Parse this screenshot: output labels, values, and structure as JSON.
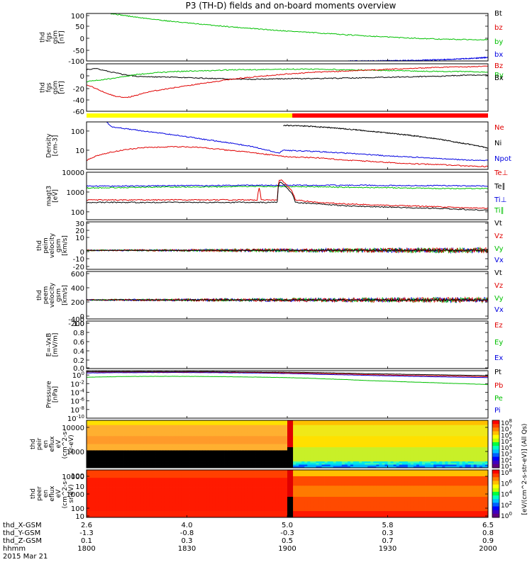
{
  "title": "P3 (TH-D) fields and on-board moments overview",
  "date_label": "2015 Mar 21",
  "time_axis": {
    "hhmm_ticks": [
      "1800",
      "1830",
      "1900",
      "1930",
      "2000"
    ],
    "rows": [
      {
        "label": "thd_X-GSM",
        "values": [
          "2.6",
          "4.0",
          "5.0",
          "5.8",
          "6.5"
        ]
      },
      {
        "label": "thd_Y-GSM",
        "values": [
          "-1.3",
          "-0.8",
          "-0.3",
          "0.3",
          "0.8"
        ]
      },
      {
        "label": "thd_Z-GSM",
        "values": [
          "0.1",
          "0.3",
          "0.5",
          "0.7",
          "0.9"
        ]
      },
      {
        "label": "hhmm",
        "values": [
          "1800",
          "1830",
          "1900",
          "1930",
          "2000"
        ]
      }
    ]
  },
  "colorbar_label": "[eV/(cm^2-s-str-eV)] (All Qs)",
  "mode_bar": {
    "colors": [
      "#ffff00",
      "#ff0000"
    ],
    "split_time": 1902.5
  },
  "chart_data": [
    {
      "type": "line",
      "ylabel": [
        "thd",
        "fgs",
        "gsm",
        "[nT]"
      ],
      "yticks": [
        "100",
        "50",
        "0",
        "-50",
        "-100"
      ],
      "ylim": [
        -100,
        100
      ],
      "legend": [
        {
          "name": "Bt",
          "color": "#000000"
        },
        {
          "name": "bz",
          "color": "#e00000"
        },
        {
          "name": "by",
          "color": "#00c000"
        },
        {
          "name": "bx",
          "color": "#0000e0"
        }
      ],
      "series": [
        {
          "name": "by",
          "color": "#00c000",
          "x": [
            1812,
            1825,
            1840,
            1855,
            1870,
            1885,
            1900,
            1915,
            1930,
            1945,
            1960,
            1975,
            1990,
            2000
          ],
          "y": [
            100,
            84,
            69,
            56,
            45,
            35,
            26,
            18,
            10,
            3,
            -3,
            -8,
            -10,
            -10
          ]
        },
        {
          "name": "bx",
          "color": "#0000e0",
          "x": [
            1930,
            1945,
            1960,
            1975,
            1990,
            2000
          ],
          "y": [
            -100,
            -100,
            -98,
            -95,
            -90,
            -85
          ]
        }
      ]
    },
    {
      "type": "line",
      "ylabel": [
        "thd",
        "fgs",
        "gsm",
        "[nT]"
      ],
      "yticks": [
        "0",
        "-20",
        "-40",
        "-60"
      ],
      "ylim": [
        -70,
        10
      ],
      "legend": [
        {
          "name": "Bz",
          "color": "#e00000"
        },
        {
          "name": "By",
          "color": "#00c000"
        },
        {
          "name": "Bx",
          "color": "#000000"
        }
      ],
      "series": [
        {
          "name": "Bx",
          "color": "#000000",
          "x": [
            1800,
            1805,
            1810,
            1818,
            1825,
            1835,
            1845,
            1855,
            1865,
            1875,
            1885,
            1900,
            1915,
            1930,
            1945,
            1960,
            1975,
            1990,
            2000
          ],
          "y": [
            0,
            2,
            -2,
            -8,
            -11,
            -12,
            -13,
            -14,
            -15,
            -16,
            -16,
            -15,
            -15,
            -14,
            -13,
            -12,
            -11,
            -9,
            -9
          ]
        },
        {
          "name": "By",
          "color": "#00c000",
          "x": [
            1800,
            1805,
            1810,
            1818,
            1825,
            1835,
            1845,
            1855,
            1865,
            1875,
            1885,
            1900,
            1915,
            1930,
            1945,
            1960,
            1975,
            1990,
            2000
          ],
          "y": [
            -20,
            -18,
            -16,
            -12,
            -8,
            -5,
            -3,
            -2,
            -1,
            0,
            0,
            1,
            1,
            0,
            -1,
            -2,
            -3,
            -3,
            -4
          ]
        },
        {
          "name": "Bz",
          "color": "#e00000",
          "x": [
            1800,
            1805,
            1810,
            1815,
            1820,
            1825,
            1830,
            1840,
            1850,
            1860,
            1870,
            1880,
            1890,
            1900,
            1915,
            1930,
            1945,
            1960,
            1975,
            1990,
            2000
          ],
          "y": [
            -25,
            -32,
            -40,
            -45,
            -47,
            -43,
            -38,
            -32,
            -27,
            -22,
            -17,
            -13,
            -10,
            -7,
            -4,
            -2,
            0,
            2,
            4,
            5,
            6
          ]
        }
      ]
    },
    {
      "type": "line",
      "yscale": "log",
      "ylabel": [
        "Density",
        "[cm-3]"
      ],
      "yticks": [
        "100",
        "10"
      ],
      "ylim": [
        1,
        300
      ],
      "legend": [
        {
          "name": "Ne",
          "color": "#e00000"
        },
        {
          "name": "Ni",
          "color": "#000000"
        },
        {
          "name": "Npot",
          "color": "#0000e0"
        }
      ],
      "series": [
        {
          "name": "Npot",
          "color": "#0000e0",
          "x": [
            1810,
            1812,
            1820,
            1830,
            1840,
            1850,
            1860,
            1870,
            1880,
            1890,
            1896,
            1898,
            1910,
            1930,
            1950,
            1970,
            1990,
            2000
          ],
          "y": [
            300,
            170,
            130,
            95,
            70,
            50,
            35,
            25,
            17,
            10,
            7,
            10,
            9,
            7,
            5,
            4,
            3,
            3
          ]
        },
        {
          "name": "Ne",
          "color": "#e00000",
          "x": [
            1800,
            1810,
            1820,
            1830,
            1840,
            1850,
            1860,
            1870,
            1880,
            1890,
            1900,
            1915,
            1930,
            1945,
            1960,
            1975,
            1990,
            2000
          ],
          "y": [
            3,
            7,
            11,
            14,
            15,
            15,
            13,
            10,
            8,
            6,
            4.5,
            4,
            3,
            2.5,
            2,
            1.8,
            1.5,
            1.4
          ]
        },
        {
          "name": "Ni",
          "color": "#000000",
          "x": [
            1898,
            1910,
            1925,
            1940,
            1955,
            1970,
            1985,
            2000
          ],
          "y": [
            200,
            180,
            140,
            100,
            70,
            45,
            25,
            13
          ]
        }
      ]
    },
    {
      "type": "line",
      "yscale": "log",
      "ylabel": [
        "magt3",
        "[eV]"
      ],
      "yticks": [
        "10000",
        "1000",
        "100"
      ],
      "ylim": [
        40,
        10000
      ],
      "legend": [
        {
          "name": "Te⊥",
          "color": "#e00000"
        },
        {
          "name": "Te∥",
          "color": "#000000"
        },
        {
          "name": "Ti⊥",
          "color": "#0000e0"
        },
        {
          "name": "Ti∥",
          "color": "#00c000"
        }
      ],
      "series": [
        {
          "name": "Ti⊥",
          "color": "#0000e0",
          "x": [
            1800,
            1820,
            1840,
            1860,
            1880,
            1900,
            1920,
            1940,
            1960,
            1980,
            2000
          ],
          "y": [
            2000,
            2000,
            2100,
            2100,
            2200,
            2200,
            2200,
            2200,
            2100,
            2100,
            2000
          ]
        },
        {
          "name": "Ti∥",
          "color": "#00c000",
          "x": [
            1800,
            1820,
            1840,
            1860,
            1880,
            1900,
            1920,
            1940,
            1960,
            1980,
            2000
          ],
          "y": [
            1600,
            1700,
            1800,
            1800,
            1900,
            1900,
            1800,
            1700,
            1600,
            1500,
            1500
          ]
        },
        {
          "name": "Te⊥",
          "color": "#e00000",
          "x": [
            1800,
            1830,
            1860,
            1885,
            1886,
            1887,
            1895,
            1896,
            1897,
            1900,
            1904,
            1915,
            1930,
            1945,
            1960,
            1975,
            1990,
            2000
          ],
          "y": [
            400,
            400,
            400,
            400,
            1500,
            400,
            400,
            4000,
            4000,
            2000,
            400,
            300,
            250,
            220,
            200,
            180,
            160,
            150
          ]
        },
        {
          "name": "Te∥",
          "color": "#000000",
          "x": [
            1800,
            1830,
            1860,
            1885,
            1895,
            1896,
            1897,
            1900,
            1904,
            1915,
            1930,
            1945,
            1960,
            1975,
            1990,
            2000
          ],
          "y": [
            300,
            300,
            300,
            300,
            300,
            3000,
            3000,
            1500,
            300,
            250,
            200,
            180,
            160,
            150,
            130,
            120
          ]
        }
      ]
    },
    {
      "type": "line",
      "ylabel": [
        "thd",
        "peim",
        "velocity",
        "gsm",
        "[km/s]"
      ],
      "yticks": [
        "30",
        "20",
        "10",
        "0",
        "-10",
        "-20"
      ],
      "ylim": [
        -20,
        30
      ],
      "legend": [
        {
          "name": "Vt",
          "color": "#000000"
        },
        {
          "name": "Vz",
          "color": "#e00000"
        },
        {
          "name": "Vy",
          "color": "#00c000"
        },
        {
          "name": "Vx",
          "color": "#0000e0"
        }
      ],
      "noise": {
        "baseline": 0,
        "amplitude_start": 0.6,
        "amplitude_end": 3
      },
      "series": []
    },
    {
      "type": "line",
      "ylabel": [
        "thd",
        "peem",
        "velocity",
        "gsm",
        "[km/s]"
      ],
      "yticks": [
        "600",
        "400",
        "200",
        "0",
        "-200",
        "-400"
      ],
      "ylim": [
        -400,
        600
      ],
      "legend": [
        {
          "name": "Vt",
          "color": "#000000"
        },
        {
          "name": "Vz",
          "color": "#e00000"
        },
        {
          "name": "Vy",
          "color": "#00c000"
        },
        {
          "name": "Vx",
          "color": "#0000e0"
        }
      ],
      "noise": {
        "baseline": 0,
        "amplitude_start": 15,
        "amplitude_end": 60
      },
      "series": []
    },
    {
      "type": "line",
      "ylabel": [
        "E=-VxB",
        "[mV/m]"
      ],
      "yticks": [
        "1.0",
        "0.8",
        "0.6",
        "0.4",
        "0.2",
        "0.0"
      ],
      "ylim": [
        0,
        1
      ],
      "legend": [
        {
          "name": "Ez",
          "color": "#e00000"
        },
        {
          "name": "Ey",
          "color": "#00c000"
        },
        {
          "name": "Ex",
          "color": "#0000e0"
        }
      ],
      "series": []
    },
    {
      "type": "line",
      "yscale": "log",
      "ylabel": [
        "Pressure",
        "[nPa]"
      ],
      "yticks": [
        "10^0",
        "10^-2",
        "10^-4",
        "10^-6",
        "10^-8",
        "10^-10"
      ],
      "ylim": [
        1e-10,
        10
      ],
      "legend": [
        {
          "name": "Pt",
          "color": "#000000"
        },
        {
          "name": "Pb",
          "color": "#e00000"
        },
        {
          "name": "Pe",
          "color": "#00c000"
        },
        {
          "name": "Pi",
          "color": "#0000e0"
        }
      ],
      "series": [
        {
          "name": "Pe",
          "color": "#00c000",
          "x": [
            1800,
            1820,
            1840,
            1860,
            1880,
            1900,
            1920,
            1940,
            1960,
            1980,
            2000
          ],
          "y": [
            0.3,
            0.45,
            0.5,
            0.45,
            0.35,
            0.25,
            0.12,
            0.05,
            0.025,
            0.012,
            0.006
          ]
        },
        {
          "name": "Pi",
          "color": "#0000e0",
          "x": [
            1800,
            1820,
            1840,
            1860,
            1880,
            1900,
            1920,
            1940,
            1960,
            1980,
            2000
          ],
          "y": [
            3,
            3.5,
            3.8,
            3.5,
            3,
            2.2,
            1.3,
            0.8,
            0.5,
            0.35,
            0.25
          ]
        },
        {
          "name": "Pb",
          "color": "#e00000",
          "x": [
            1800,
            1820,
            1840,
            1860,
            1880,
            1900,
            1920,
            1940,
            1960,
            1980,
            2000
          ],
          "y": [
            5,
            5,
            5,
            5,
            4,
            3,
            2,
            1.2,
            0.8,
            0.6,
            0.4
          ]
        },
        {
          "name": "Pt",
          "color": "#000000",
          "x": [
            1800,
            1820,
            1840,
            1860,
            1880,
            1900,
            1920,
            1940,
            1960,
            1980,
            2000
          ],
          "y": [
            6,
            6,
            6,
            6,
            5,
            4.5,
            3.2,
            2,
            1.4,
            1,
            0.7
          ]
        }
      ]
    },
    {
      "type": "heatmap",
      "ylabel": [
        "thd",
        "peir",
        "en",
        "eflux",
        "eV",
        "(cm^2-s-",
        "sr-eV)"
      ],
      "yticks": [
        "10000",
        "1000",
        "100",
        "10"
      ],
      "ylim": [
        5,
        30000
      ],
      "colorbar": {
        "ticks": [
          "10^8",
          "10^7",
          "10^6",
          "10^5",
          "10^4",
          "10^3",
          "10^2",
          "10^1"
        ]
      }
    },
    {
      "type": "heatmap",
      "ylabel": [
        "thd",
        "peer",
        "en",
        "eflux",
        "eV",
        "(cm^2-s-",
        "sr-eV)"
      ],
      "yticks": [
        "10000",
        "1000",
        "100",
        "10"
      ],
      "ylim": [
        5,
        30000
      ],
      "colorbar": {
        "ticks": [
          "10^8",
          "10^6",
          "10^4",
          "10^2",
          "10^0"
        ]
      }
    }
  ]
}
